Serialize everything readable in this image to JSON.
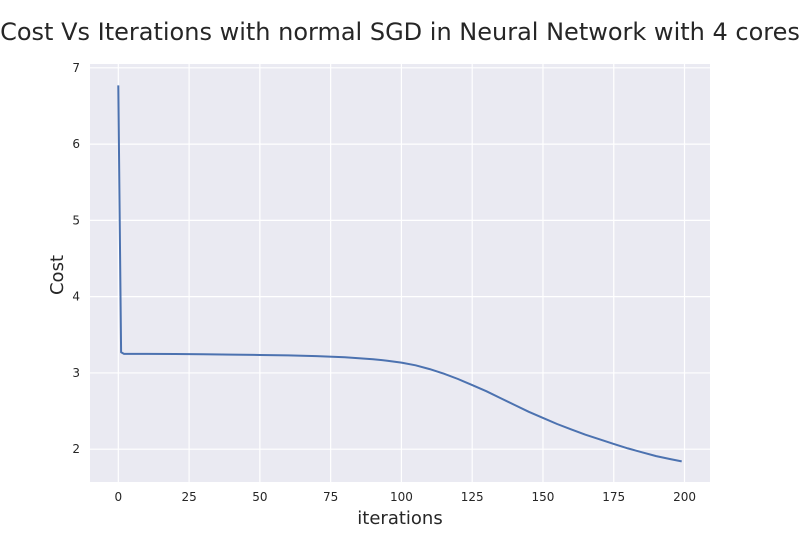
{
  "chart_data": {
    "type": "line",
    "title": "Cost Vs Iterations with normal SGD in Neural Network with 4 cores",
    "xlabel": "iterations",
    "ylabel": "Cost",
    "xlim": [
      -10,
      209
    ],
    "ylim": [
      1.57,
      7.05
    ],
    "xticks": [
      0,
      25,
      50,
      75,
      100,
      125,
      150,
      175,
      200
    ],
    "yticks": [
      2,
      3,
      4,
      5,
      6,
      7
    ],
    "grid": true,
    "legend": "none",
    "colors": {
      "background": "#eaeaf2",
      "grid": "#ffffff",
      "line": "#4c72b0"
    },
    "series": [
      {
        "x": [
          0,
          1,
          2,
          5,
          10,
          20,
          30,
          40,
          50,
          60,
          70,
          80,
          90,
          95,
          100,
          105,
          110,
          115,
          120,
          125,
          130,
          135,
          140,
          145,
          150,
          155,
          160,
          165,
          170,
          175,
          180,
          185,
          190,
          195,
          199
        ],
        "y": [
          6.77,
          3.27,
          3.25,
          3.25,
          3.25,
          3.248,
          3.245,
          3.24,
          3.235,
          3.23,
          3.22,
          3.205,
          3.18,
          3.16,
          3.135,
          3.1,
          3.05,
          2.99,
          2.92,
          2.84,
          2.76,
          2.67,
          2.58,
          2.49,
          2.41,
          2.33,
          2.26,
          2.19,
          2.13,
          2.07,
          2.01,
          1.96,
          1.91,
          1.87,
          1.84
        ]
      }
    ]
  }
}
